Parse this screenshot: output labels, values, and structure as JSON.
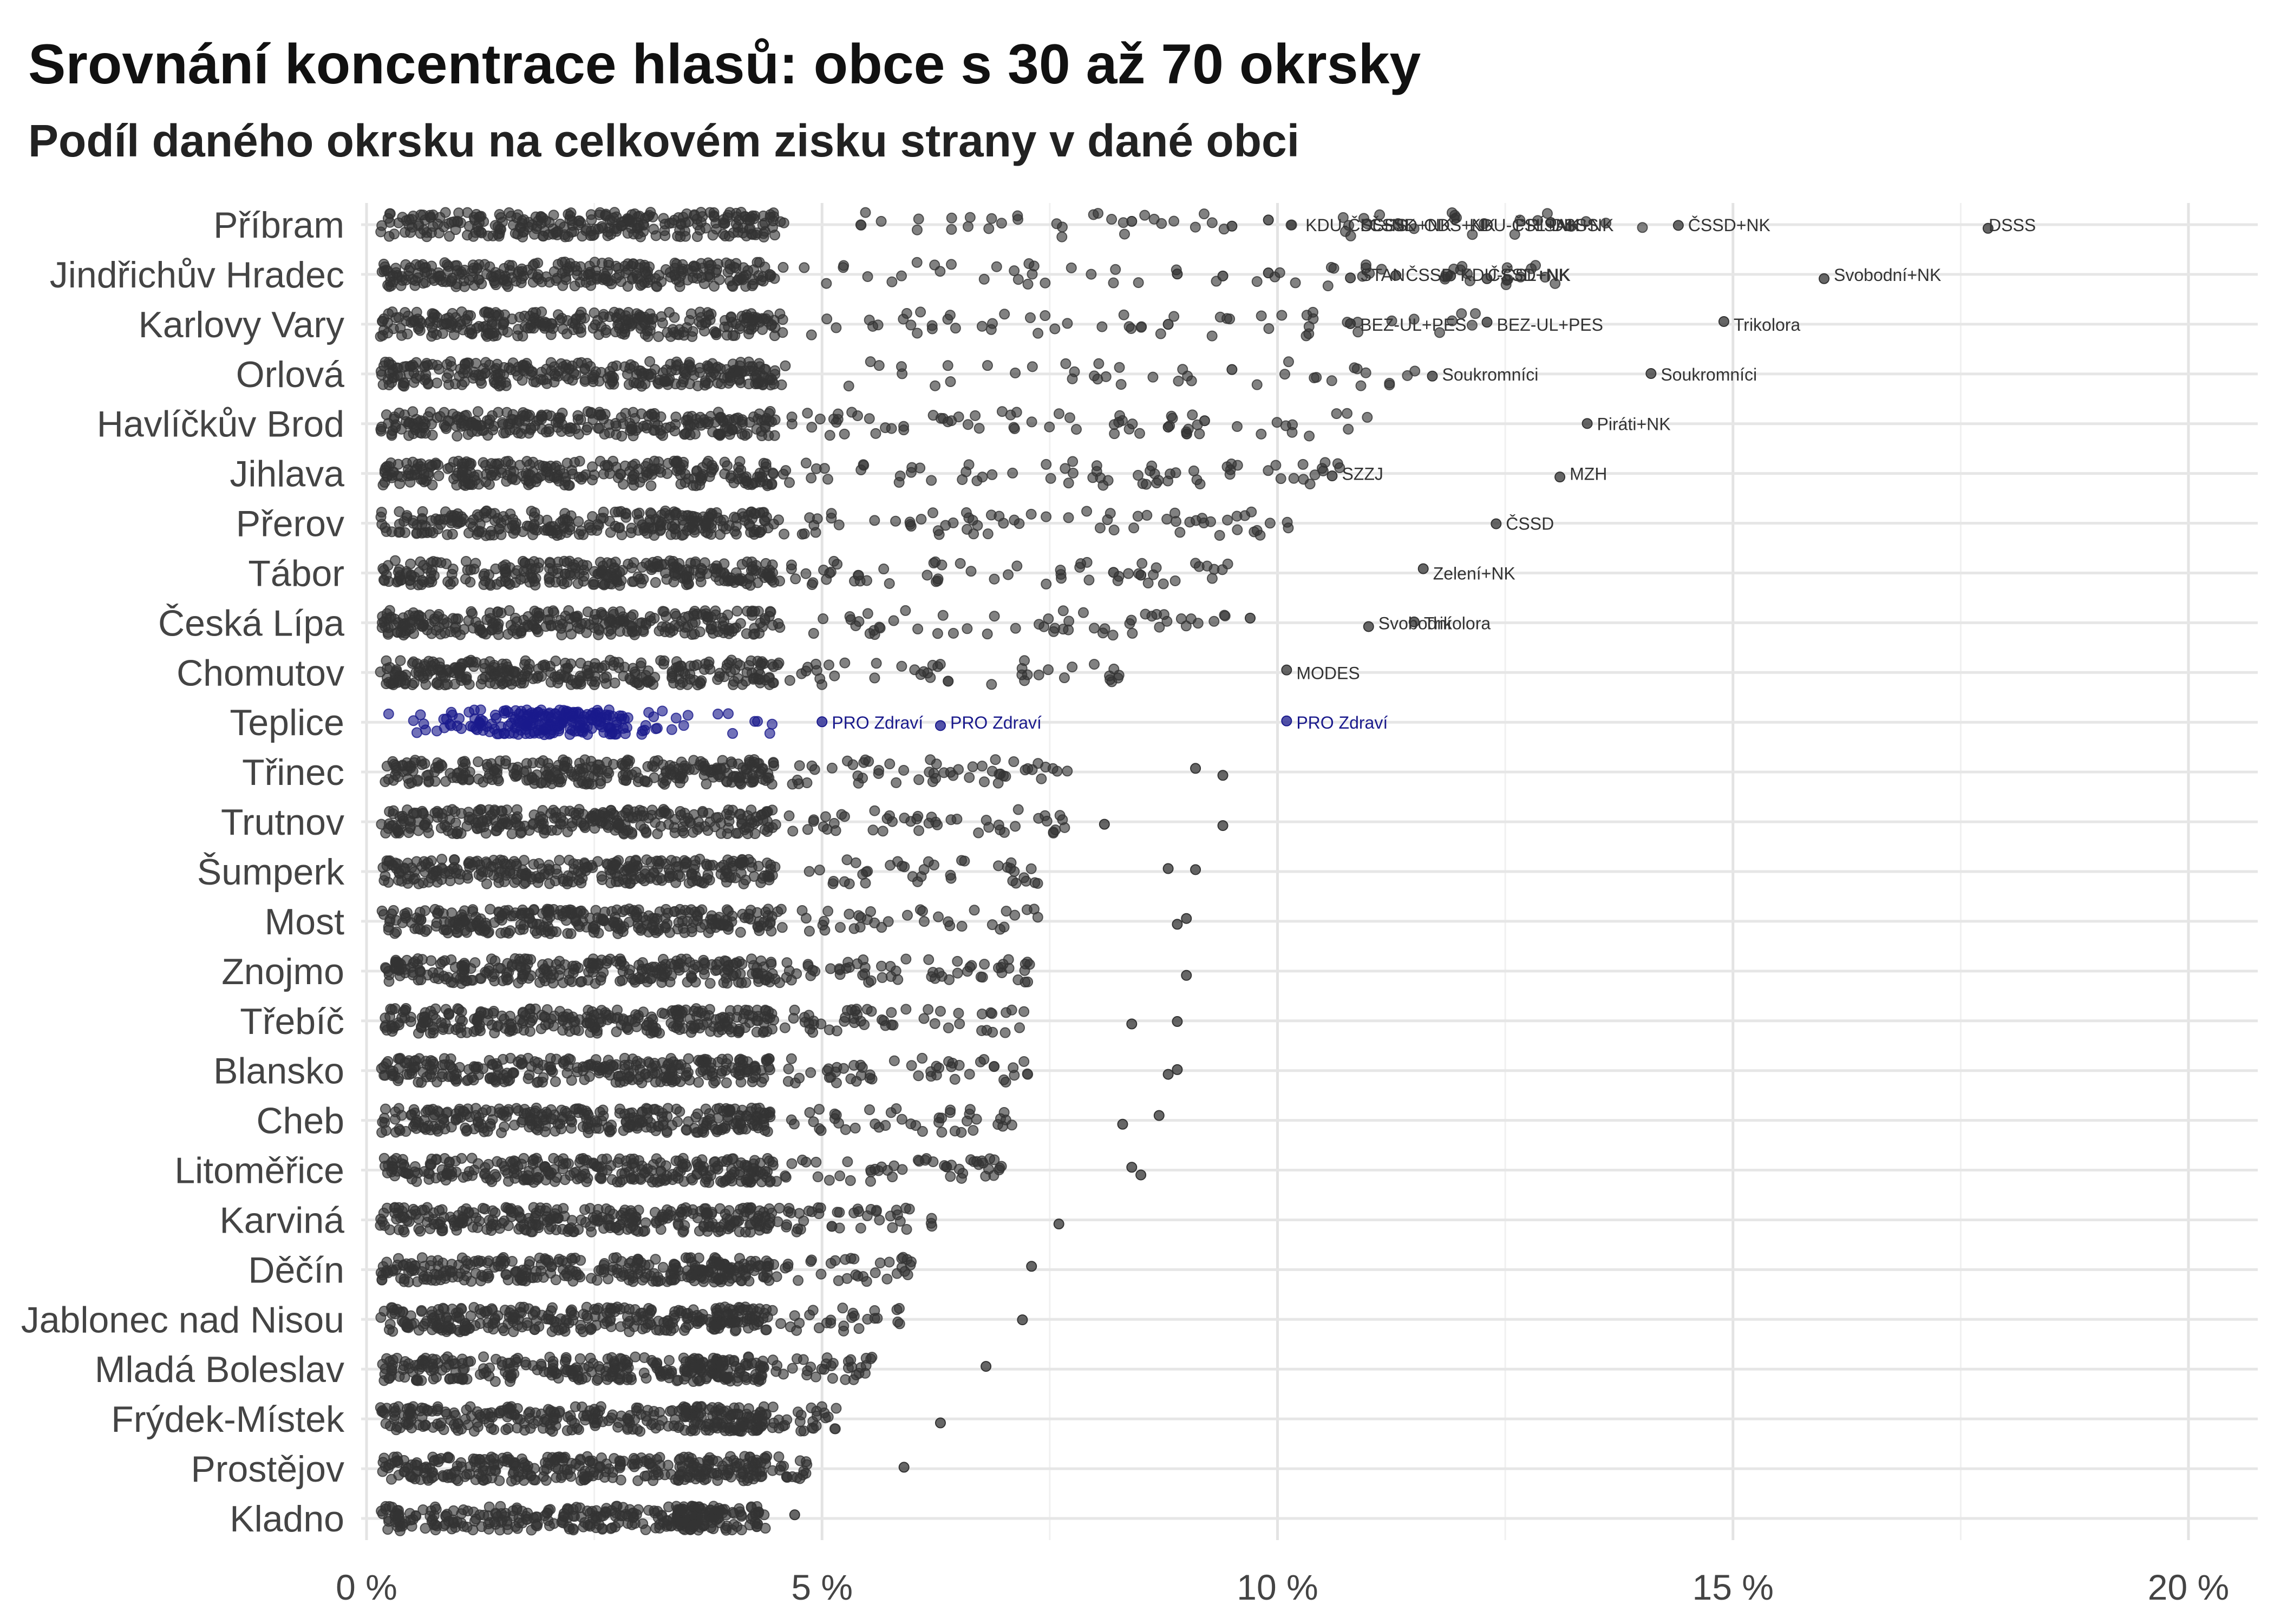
{
  "chart_data": {
    "type": "scatter",
    "title": "Srovnání koncentrace hlasů: obce s 30 až 70 okrsky",
    "subtitle": "Podíl daného okrsku na celkovém zisku strany v dané obci",
    "x_ticks": [
      {
        "value": 0,
        "label": "0 %"
      },
      {
        "value": 5,
        "label": "5 %"
      },
      {
        "value": 10,
        "label": "10 %"
      },
      {
        "value": 15,
        "label": "15 %"
      },
      {
        "value": 20,
        "label": "20 %"
      }
    ],
    "xlim": [
      0,
      21
    ],
    "grid": true,
    "point_color": "#333333",
    "highlight_color": "#1a1a8c",
    "highlight": "Teplice",
    "categories": [
      {
        "name": "Příbram",
        "outliers": [
          8.4,
          9.5,
          9.9,
          13.0,
          14.4,
          17.8
        ],
        "labels": [
          {
            "x": 10.2,
            "text": "KDU-ČSL+NK"
          },
          {
            "x": 10.8,
            "text": "DSSS"
          },
          {
            "x": 10.9,
            "text": "ČSSD+NK"
          },
          {
            "x": 11.5,
            "text": "ODS+NK"
          },
          {
            "x": 12.0,
            "text": "KDU-ČSL+NK"
          },
          {
            "x": 12.5,
            "text": "PRÍSAH+NK"
          },
          {
            "x": 12.9,
            "text": "DSSS"
          },
          {
            "x": 14.4,
            "text": "ČSSD+NK"
          },
          {
            "x": 17.7,
            "text": "DSSS"
          }
        ]
      },
      {
        "name": "Jindřichův Hradec",
        "outliers": [
          8.9,
          9.4,
          9.9,
          10.8,
          11.3,
          11.9,
          12.3,
          16.0
        ],
        "labels": [
          {
            "x": 10.8,
            "text": "STAN"
          },
          {
            "x": 11.3,
            "text": "ČSSD"
          },
          {
            "x": 11.9,
            "text": "KDU-ČSL+NK"
          },
          {
            "x": 12.2,
            "text": "ČSSD+NK"
          },
          {
            "x": 16.0,
            "text": "Svobodní+NK"
          }
        ]
      },
      {
        "name": "Karlovy Vary",
        "outliers": [
          8.8,
          10.8,
          12.3,
          14.9
        ],
        "labels": [
          {
            "x": 10.8,
            "text": "BEZ-UL+PES"
          },
          {
            "x": 12.3,
            "text": "BEZ-UL+PES"
          },
          {
            "x": 14.9,
            "text": "Trikolora"
          }
        ]
      },
      {
        "name": "Orlová",
        "outliers": [
          9.5,
          11.7,
          14.1
        ],
        "labels": [
          {
            "x": 11.7,
            "text": "Soukromníci"
          },
          {
            "x": 14.1,
            "text": "Soukromníci"
          }
        ]
      },
      {
        "name": "Havlíčkův Brod",
        "outliers": [
          8.8,
          9.2,
          13.4
        ],
        "labels": [
          {
            "x": 13.4,
            "text": "Piráti+NK"
          }
        ]
      },
      {
        "name": "Jihlava",
        "outliers": [
          10.6,
          13.1
        ],
        "labels": [
          {
            "x": 10.6,
            "text": "SZZJ"
          },
          {
            "x": 13.1,
            "text": "MZH"
          }
        ]
      },
      {
        "name": "Přerov",
        "outliers": [
          12.4
        ],
        "labels": [
          {
            "x": 12.4,
            "text": "ČSSD"
          }
        ]
      },
      {
        "name": "Tábor",
        "outliers": [
          8.2,
          8.5,
          11.6
        ],
        "labels": [
          {
            "x": 11.6,
            "text": "Zelení+NK"
          }
        ]
      },
      {
        "name": "Česká Lípa",
        "outliers": [
          9.7,
          11.0,
          11.5
        ],
        "labels": [
          {
            "x": 11.0,
            "text": "Svobodní"
          },
          {
            "x": 11.5,
            "text": "Trikolora"
          }
        ]
      },
      {
        "name": "Chomutov",
        "outliers": [
          10.1
        ],
        "labels": [
          {
            "x": 10.1,
            "text": "MODES"
          }
        ]
      },
      {
        "name": "Teplice",
        "outliers": [
          5.0,
          6.3,
          10.1
        ],
        "labels": [
          {
            "x": 5.0,
            "text": "PRO Zdraví"
          },
          {
            "x": 6.3,
            "text": "PRO Zdraví"
          },
          {
            "x": 10.1,
            "text": "PRO Zdraví"
          }
        ]
      },
      {
        "name": "Třinec",
        "outliers": [
          9.1,
          9.4
        ],
        "labels": []
      },
      {
        "name": "Trutnov",
        "outliers": [
          8.1,
          9.4
        ],
        "labels": []
      },
      {
        "name": "Šumperk",
        "outliers": [
          8.8,
          9.1
        ],
        "labels": []
      },
      {
        "name": "Most",
        "outliers": [
          8.9,
          9.0
        ],
        "labels": []
      },
      {
        "name": "Znojmo",
        "outliers": [
          9.0
        ],
        "labels": []
      },
      {
        "name": "Třebíč",
        "outliers": [
          8.4,
          8.9
        ],
        "labels": []
      },
      {
        "name": "Blansko",
        "outliers": [
          8.8,
          8.9
        ],
        "labels": []
      },
      {
        "name": "Cheb",
        "outliers": [
          8.3,
          8.7
        ],
        "labels": []
      },
      {
        "name": "Litoměřice",
        "outliers": [
          8.4,
          8.5
        ],
        "labels": []
      },
      {
        "name": "Karviná",
        "outliers": [
          7.6
        ],
        "labels": []
      },
      {
        "name": "Děčín",
        "outliers": [
          7.3
        ],
        "labels": []
      },
      {
        "name": "Jablonec nad Nisou",
        "outliers": [
          7.2
        ],
        "labels": []
      },
      {
        "name": "Mladá Boleslav",
        "outliers": [
          6.8
        ],
        "labels": []
      },
      {
        "name": "Frýdek-Místek",
        "outliers": [
          6.3
        ],
        "labels": []
      },
      {
        "name": "Prostějov",
        "outliers": [
          5.9
        ],
        "labels": []
      },
      {
        "name": "Kladno",
        "outliers": [
          4.7
        ],
        "labels": []
      }
    ]
  }
}
